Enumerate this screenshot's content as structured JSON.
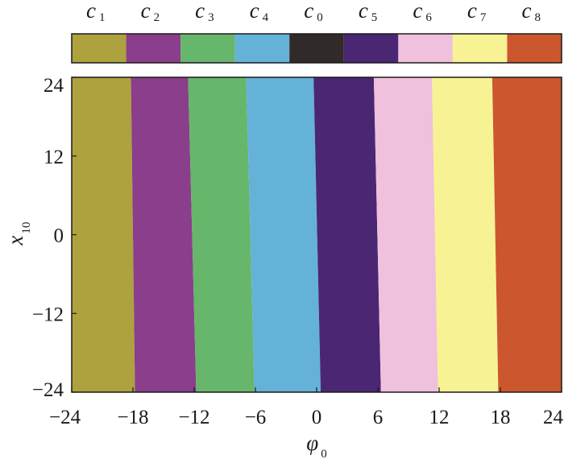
{
  "chart_data": {
    "type": "heatmap",
    "x_axis": {
      "symbol": "φ",
      "subscript": "0",
      "range": [
        -24,
        24
      ],
      "ticks": [
        "−24",
        "−18",
        "−12",
        "−6",
        "0",
        "6",
        "12",
        "18",
        "24"
      ]
    },
    "y_axis": {
      "symbol": "x",
      "subscript": "10",
      "range": [
        -24,
        24
      ],
      "ticks": [
        "24",
        "12",
        "0",
        "−12",
        "−24"
      ]
    },
    "legend": {
      "placement": "top",
      "entries": [
        {
          "symbol": "c",
          "subscript": "1",
          "color": "#ada23d"
        },
        {
          "symbol": "c",
          "subscript": "2",
          "color": "#8a3e8b"
        },
        {
          "symbol": "c",
          "subscript": "3",
          "color": "#66b66b"
        },
        {
          "symbol": "c",
          "subscript": "4",
          "color": "#65b2d8"
        },
        {
          "symbol": "c",
          "subscript": "0",
          "color": "#302a28"
        },
        {
          "symbol": "c",
          "subscript": "5",
          "color": "#4b2673"
        },
        {
          "symbol": "c",
          "subscript": "6",
          "color": "#efc1dc"
        },
        {
          "symbol": "c",
          "subscript": "7",
          "color": "#f7f395"
        },
        {
          "symbol": "c",
          "subscript": "8",
          "color": "#cc572f"
        }
      ]
    },
    "regions": [
      {
        "class": "c1",
        "color": "#ada23d",
        "x_left_at_top": -24,
        "x_left_at_bottom": -24
      },
      {
        "class": "c2",
        "color": "#8a3e8b",
        "x_left_at_top": -18.2,
        "x_left_at_bottom": -17.8
      },
      {
        "class": "c3",
        "color": "#66b66b",
        "x_left_at_top": -12.6,
        "x_left_at_bottom": -11.8
      },
      {
        "class": "c4",
        "color": "#65b2d8",
        "x_left_at_top": -6.9,
        "x_left_at_bottom": -6.1
      },
      {
        "class": "c5",
        "color": "#4b2673",
        "x_left_at_top": -0.3,
        "x_left_at_bottom": 0.4
      },
      {
        "class": "c6",
        "color": "#efc1dc",
        "x_left_at_top": 5.6,
        "x_left_at_bottom": 6.3
      },
      {
        "class": "c7",
        "color": "#f7f395",
        "x_left_at_top": 11.3,
        "x_left_at_bottom": 11.9
      },
      {
        "class": "c8",
        "color": "#cc572f",
        "x_left_at_top": 17.2,
        "x_left_at_bottom": 17.8
      }
    ],
    "grid": false
  }
}
